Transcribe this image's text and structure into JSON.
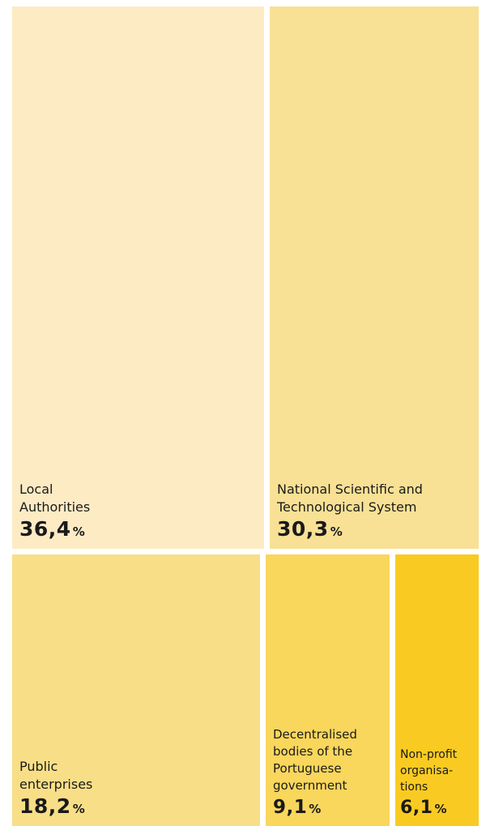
{
  "chart_data": {
    "type": "treemap",
    "unit": "%",
    "items": [
      {
        "label": "Local\nAuthorities",
        "value": 36.4,
        "display": "36,4",
        "color": "#fdebc4"
      },
      {
        "label": "National Scientific and\nTechnological System",
        "value": 30.3,
        "display": "30,3",
        "color": "#f8e195"
      },
      {
        "label": "Public\nenterprises",
        "value": 18.2,
        "display": "18,2",
        "color": "#f8df87"
      },
      {
        "label": "Decentralised\nbodies of the\nPortuguese\ngovernment",
        "value": 9.1,
        "display": "9,1",
        "color": "#f9d65c"
      },
      {
        "label": "Non-profit\norganisa-\ntions",
        "value": 6.1,
        "display": "6,1",
        "color": "#f9cb22"
      }
    ]
  }
}
